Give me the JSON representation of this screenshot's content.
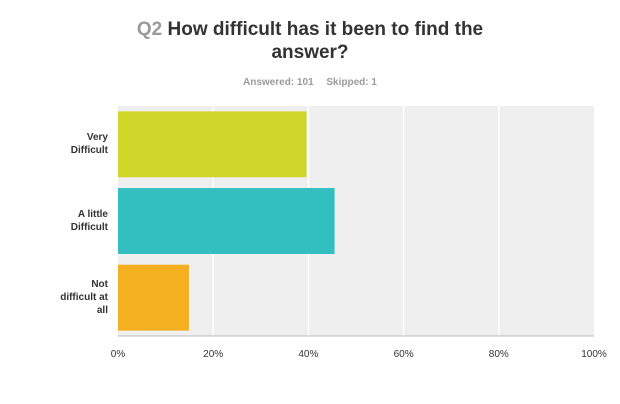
{
  "question": {
    "number": "Q2",
    "text": "How difficult has it been to find the answer?",
    "answered": "Answered: 101",
    "skipped": "Skipped: 1"
  },
  "chart_data": {
    "type": "bar",
    "orientation": "horizontal",
    "categories": [
      "Very Difficult",
      "A little Difficult",
      "Not difficult at all"
    ],
    "category_lines": [
      [
        "Very",
        "Difficult"
      ],
      [
        "A little",
        "Difficult"
      ],
      [
        "Not",
        "difficult at",
        "all"
      ]
    ],
    "values": [
      39.6,
      45.5,
      14.9
    ],
    "colors": [
      "#d0d52a",
      "#33bfc0",
      "#f5b022"
    ],
    "xlim": [
      0,
      100
    ],
    "xticks": [
      "0%",
      "20%",
      "40%",
      "60%",
      "80%",
      "100%"
    ],
    "grid": true,
    "legend": "none"
  }
}
